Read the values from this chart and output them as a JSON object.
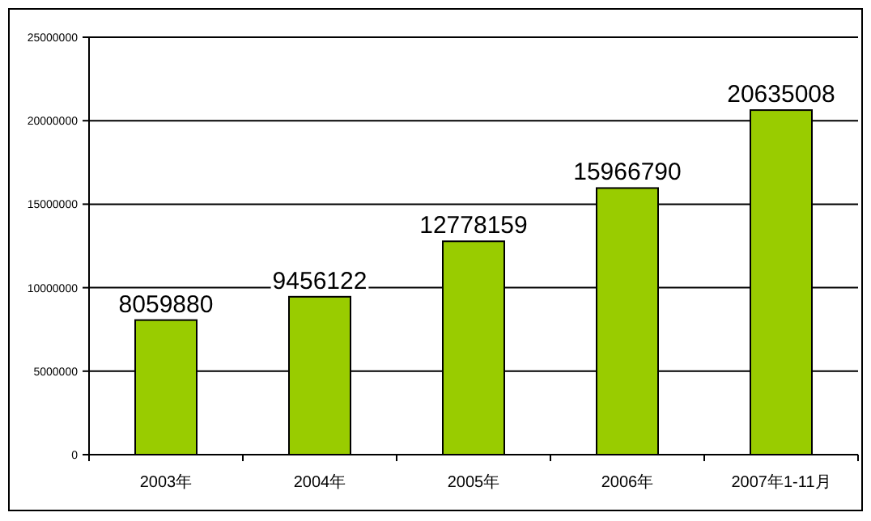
{
  "chart_data": {
    "type": "bar",
    "categories": [
      "2003年",
      "2004年",
      "2005年",
      "2006年",
      "2007年1-11月"
    ],
    "values": [
      8059880,
      9456122,
      12778159,
      15966790,
      20635008
    ],
    "color": "#99cc00",
    "data_labels": true,
    "grid": "y",
    "ylim": [
      0,
      25000000
    ],
    "yticks": [
      0,
      5000000,
      10000000,
      15000000,
      20000000,
      25000000
    ]
  }
}
